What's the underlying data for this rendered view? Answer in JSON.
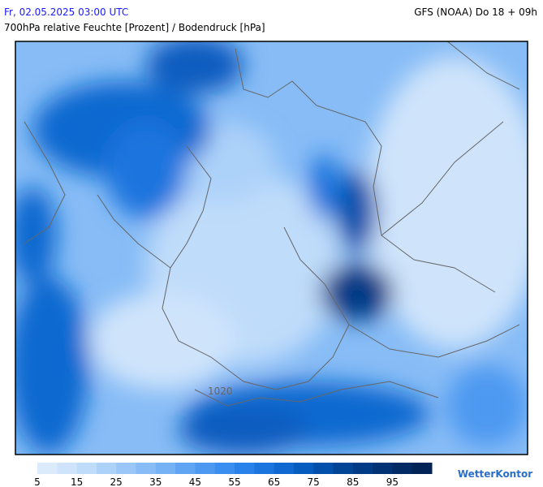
{
  "header": {
    "date": "Fr, 02.05.2025 03:00 UTC",
    "model": "GFS (NOAA) Do 18 + 09h",
    "subtitle": "700hPa relative Feuchte [Prozent] / Bodendruck [hPa]"
  },
  "map": {
    "isobar_label": "1020"
  },
  "legend": {
    "ticks": [
      5,
      15,
      25,
      35,
      45,
      55,
      65,
      75,
      85,
      95
    ],
    "colors": [
      "#dcebfc",
      "#cfe4fb",
      "#bfdcfa",
      "#add2f9",
      "#9ac7f7",
      "#87bcf6",
      "#74b1f5",
      "#60a5f3",
      "#4d99f1",
      "#3a8eef",
      "#2882ea",
      "#1a75de",
      "#0f69d0",
      "#075cbf",
      "#0350aa",
      "#024597",
      "#023b85",
      "#023274",
      "#022a64",
      "#022356"
    ]
  },
  "brand": "WetterKontor"
}
